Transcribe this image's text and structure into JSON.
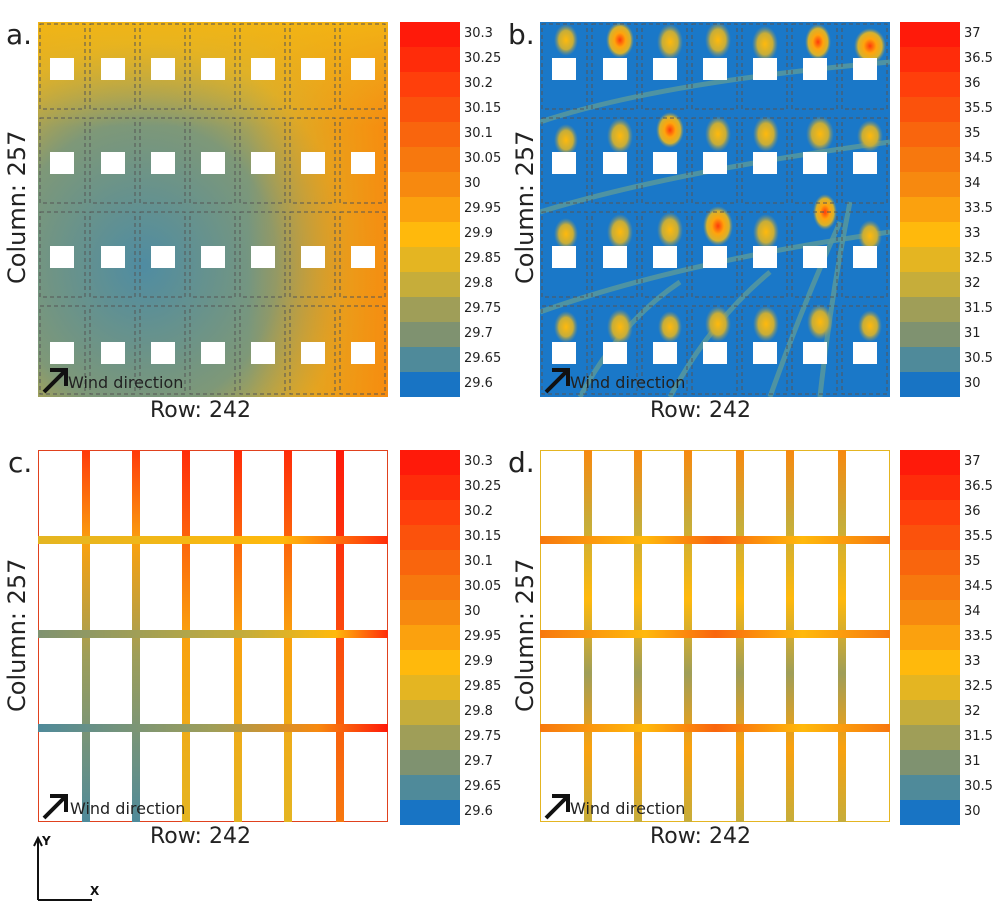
{
  "panels": [
    {
      "label": "a.",
      "ylabel": "Column: 257",
      "xlabel": "Row: 242",
      "wind": "Wind direction",
      "colorbar": [
        "30.3",
        "30.25",
        "30.2",
        "30.15",
        "30.1",
        "30.05",
        "30",
        "29.95",
        "29.9",
        "29.85",
        "29.8",
        "29.75",
        "29.7",
        "29.65",
        "29.6"
      ]
    },
    {
      "label": "b.",
      "ylabel": "Column: 257",
      "xlabel": "Row: 242",
      "wind": "Wind direction",
      "colorbar": [
        "37",
        "36.5",
        "36",
        "35.5",
        "35",
        "34.5",
        "34",
        "33.5",
        "33",
        "32.5",
        "32",
        "31.5",
        "31",
        "30.5",
        "30"
      ]
    },
    {
      "label": "c.",
      "ylabel": "Column: 257",
      "xlabel": "Row: 242",
      "wind": "Wind direction",
      "colorbar": [
        "30.3",
        "30.25",
        "30.2",
        "30.15",
        "30.1",
        "30.05",
        "30",
        "29.95",
        "29.9",
        "29.85",
        "29.8",
        "29.75",
        "29.7",
        "29.65",
        "29.6"
      ]
    },
    {
      "label": "d.",
      "ylabel": "Column: 257",
      "xlabel": "Row: 242",
      "wind": "Wind direction",
      "colorbar": [
        "37",
        "36.5",
        "36",
        "35.5",
        "35",
        "34.5",
        "34",
        "33.5",
        "33",
        "32.5",
        "32",
        "31.5",
        "31",
        "30.5",
        "30"
      ]
    }
  ],
  "colorscale": [
    "#ff1a0a",
    "#ff2c0a",
    "#ff3f0b",
    "#fb520c",
    "#f9650d",
    "#f7780e",
    "#f7890f",
    "#fba10e",
    "#ffb90c",
    "#e4b522",
    "#c6ad3a",
    "#9f9e58",
    "#7f9270",
    "#4f8a9a",
    "#1874c4"
  ],
  "axis": {
    "y": "Y",
    "x": "X"
  }
}
